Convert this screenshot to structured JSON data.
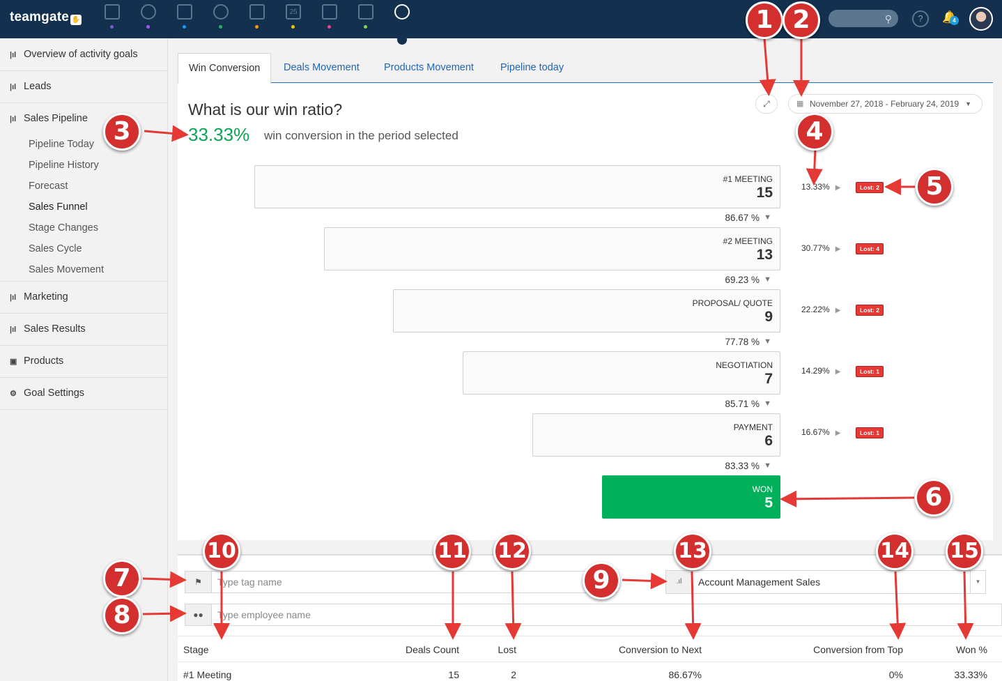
{
  "app": {
    "logo": "teamgate"
  },
  "topbar": {
    "nav_icons": [
      {
        "name": "dashboard-icon",
        "dot": "#7b5cd6"
      },
      {
        "name": "goals-icon",
        "dot": "#a855f7"
      },
      {
        "name": "companies-icon",
        "dot": "#2196f3"
      },
      {
        "name": "people-icon",
        "dot": "#27ae60"
      },
      {
        "name": "deals-icon",
        "dot": "#f39c12"
      },
      {
        "name": "calendar-icon",
        "dot": "#f1c40f"
      },
      {
        "name": "inbox-icon",
        "dot": "#e84393"
      },
      {
        "name": "files-icon",
        "dot": "#7ed957"
      },
      {
        "name": "analytics-icon",
        "dot": ""
      }
    ],
    "calendar_num": "25",
    "notification_count": "4",
    "help_label": "?"
  },
  "sidebar": {
    "items": [
      {
        "label": "Overview of activity goals",
        "icon": "chart-icon"
      },
      {
        "label": "Leads",
        "icon": "chart-icon"
      },
      {
        "label": "Sales Pipeline",
        "icon": "chart-icon"
      },
      {
        "label": "Marketing",
        "icon": "chart-icon"
      },
      {
        "label": "Sales Results",
        "icon": "chart-icon"
      },
      {
        "label": "Products",
        "icon": "bag-icon"
      },
      {
        "label": "Goal Settings",
        "icon": "gears-icon"
      }
    ],
    "sub_items": [
      "Pipeline Today",
      "Pipeline History",
      "Forecast",
      "Sales Funnel",
      "Stage Changes",
      "Sales Cycle",
      "Sales Movement"
    ]
  },
  "tabs": [
    "Win Conversion",
    "Deals Movement",
    "Products Movement",
    "Pipeline today"
  ],
  "main": {
    "question": "What is our win ratio?",
    "ratio": "33.33%",
    "ratio_text": "win conversion in the period selected",
    "date_range": "November 27, 2018 - February 24, 2019"
  },
  "funnel": [
    {
      "name": "#1 MEETING",
      "count": "15",
      "lost_rate": "13.33%",
      "lost": "Lost: 2",
      "conv": "86.67 %"
    },
    {
      "name": "#2 MEETING",
      "count": "13",
      "lost_rate": "30.77%",
      "lost": "Lost: 4",
      "conv": "69.23 %"
    },
    {
      "name": "PROPOSAL/ QUOTE",
      "count": "9",
      "lost_rate": "22.22%",
      "lost": "Lost: 2",
      "conv": "77.78 %"
    },
    {
      "name": "NEGOTIATION",
      "count": "7",
      "lost_rate": "14.29%",
      "lost": "Lost: 1",
      "conv": "85.71 %"
    },
    {
      "name": "PAYMENT",
      "count": "6",
      "lost_rate": "16.67%",
      "lost": "Lost: 1",
      "conv": "83.33 %"
    }
  ],
  "won": {
    "name": "WON",
    "count": "5"
  },
  "filters": {
    "tag_placeholder": "Type tag name",
    "employee_placeholder": "Type employee name",
    "pipeline": "Account Management Sales"
  },
  "table": {
    "headers": [
      "Stage",
      "Deals Count",
      "Lost",
      "Conversion to Next",
      "Conversion from Top",
      "Won %"
    ],
    "rows": [
      {
        "stage": "#1 Meeting",
        "deals": "15",
        "lost": "2",
        "conv_next": "86.67%",
        "conv_top": "0%",
        "won": "33.33%"
      }
    ]
  },
  "callouts": [
    "1",
    "2",
    "3",
    "4",
    "5",
    "6",
    "7",
    "8",
    "9",
    "10",
    "11",
    "12",
    "13",
    "14",
    "15"
  ]
}
